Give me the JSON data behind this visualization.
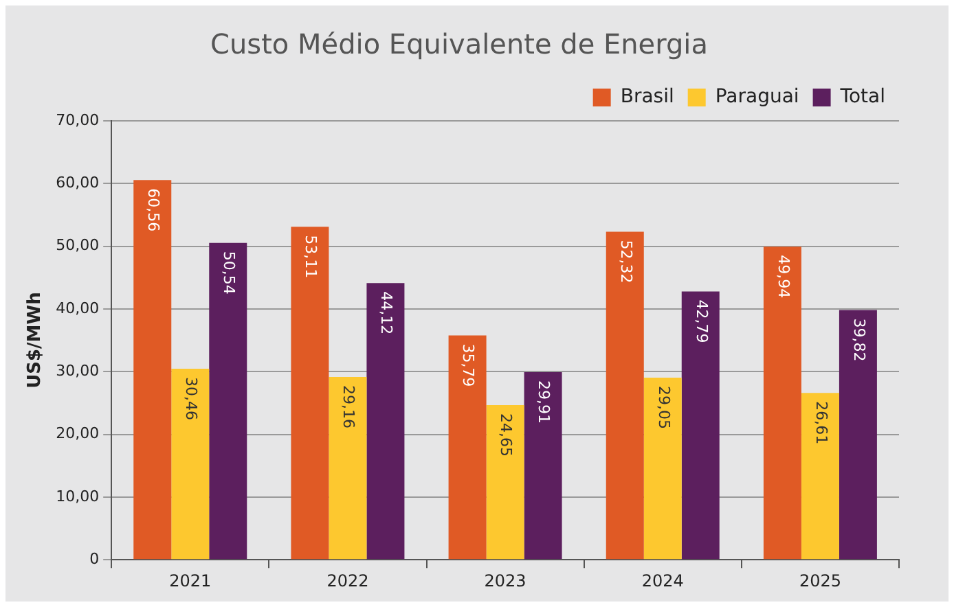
{
  "chart_data": {
    "type": "bar",
    "title": "Custo Médio Equivalente de Energia",
    "ylabel": "US$/MWh",
    "categories": [
      "2021",
      "2022",
      "2023",
      "2024",
      "2025"
    ],
    "series": [
      {
        "name": "Brasil",
        "color": "#e05a25",
        "values": [
          60.56,
          53.11,
          35.79,
          52.32,
          49.94
        ],
        "value_labels": [
          "60,56",
          "53,11",
          "35,79",
          "52,32",
          "49,94"
        ]
      },
      {
        "name": "Paraguai",
        "color": "#fdc82f",
        "values": [
          30.46,
          29.16,
          24.65,
          29.05,
          26.61
        ],
        "value_labels": [
          "30,46",
          "29,16",
          "24,65",
          "29,05",
          "26,61"
        ]
      },
      {
        "name": "Total",
        "color": "#5c1f5e",
        "values": [
          50.54,
          44.12,
          29.91,
          42.79,
          39.82
        ],
        "value_labels": [
          "50,54",
          "44,12",
          "29,91",
          "42,79",
          "39,82"
        ]
      }
    ],
    "ylim": [
      0,
      70
    ],
    "yticks": [
      {
        "value": 0,
        "label": "0"
      },
      {
        "value": 10,
        "label": "10,00"
      },
      {
        "value": 20,
        "label": "20,00"
      },
      {
        "value": 30,
        "label": "30,00"
      },
      {
        "value": 40,
        "label": "40,00"
      },
      {
        "value": 50,
        "label": "50,00"
      },
      {
        "value": 60,
        "label": "60,00"
      },
      {
        "value": 70,
        "label": "70,00"
      }
    ],
    "grid": "y",
    "legend": "top right"
  }
}
